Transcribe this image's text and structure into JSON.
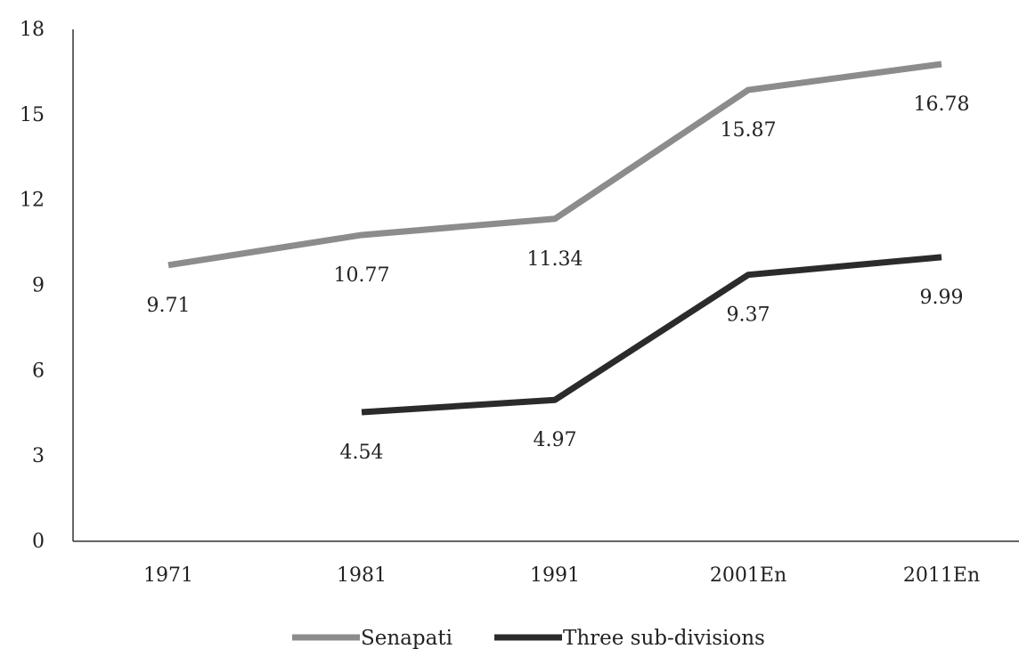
{
  "chart_data": {
    "type": "line",
    "title": "",
    "xlabel": "",
    "ylabel": "",
    "categories": [
      "1971",
      "1981",
      "1991",
      "2001En",
      "2011En"
    ],
    "ylim": [
      0,
      18
    ],
    "yticks": [
      0,
      3,
      6,
      9,
      12,
      15,
      18
    ],
    "grid": false,
    "legend_position": "bottom",
    "series": [
      {
        "name": "Senapati",
        "color": "#8c8c8c",
        "values": [
          9.71,
          10.77,
          11.34,
          15.87,
          16.78
        ],
        "labels": [
          "9.71",
          "10.77",
          "11.34",
          "15.87",
          "16.78"
        ]
      },
      {
        "name": "Three sub-divisions",
        "color": "#2b2b2b",
        "values": [
          null,
          4.54,
          4.97,
          9.37,
          9.99
        ],
        "labels": [
          "",
          "4.54",
          "4.97",
          "9.37",
          "9.99"
        ]
      }
    ]
  }
}
